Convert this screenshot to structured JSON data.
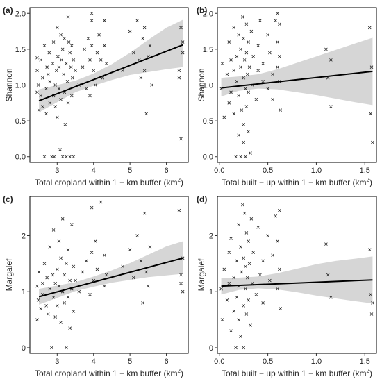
{
  "chart_data": [
    {
      "type": "scatter",
      "panel_label": "(a)",
      "xlabel": "Total cropland within 1 − km buffer (km",
      "xlabel_sup": "2",
      "xlabel_tail": ")",
      "ylabel": "Shannon",
      "xlim": [
        2.25,
        6.6
      ],
      "ylim": [
        -0.08,
        2.08
      ],
      "xticks": [
        3,
        4,
        5,
        6
      ],
      "xtick_labels": [
        "3",
        "4",
        "5",
        "6"
      ],
      "yticks": [
        0.0,
        0.5,
        1.0,
        1.5,
        2.0
      ],
      "ytick_labels": [
        "0.0",
        "0.5",
        "1.0",
        "1.5",
        "2.0"
      ],
      "fit": {
        "x": [
          2.5,
          6.45
        ],
        "y": [
          0.78,
          1.56
        ]
      },
      "band": {
        "x": [
          2.5,
          3.0,
          3.5,
          4.0,
          4.5,
          5.0,
          5.5,
          6.0,
          6.45
        ],
        "lower": [
          0.62,
          0.76,
          0.9,
          0.99,
          1.07,
          1.14,
          1.18,
          1.22,
          1.25
        ],
        "upper": [
          0.94,
          1.0,
          1.06,
          1.16,
          1.29,
          1.45,
          1.63,
          1.8,
          1.91
        ]
      },
      "points": {
        "x": [
          2.45,
          2.45,
          2.45,
          2.48,
          2.5,
          2.55,
          2.55,
          2.6,
          2.6,
          2.65,
          2.65,
          2.7,
          2.7,
          2.72,
          2.75,
          2.78,
          2.8,
          2.8,
          2.85,
          2.88,
          2.9,
          2.9,
          2.92,
          2.95,
          2.95,
          2.98,
          3.0,
          3.0,
          3.02,
          3.05,
          3.05,
          3.08,
          3.1,
          3.1,
          3.12,
          3.15,
          3.15,
          3.18,
          3.2,
          3.2,
          3.22,
          3.25,
          3.25,
          3.28,
          3.3,
          3.3,
          3.32,
          3.35,
          3.35,
          3.38,
          3.4,
          3.4,
          3.42,
          3.45,
          3.45,
          3.5,
          3.6,
          3.7,
          3.75,
          3.8,
          3.85,
          3.9,
          3.9,
          3.95,
          3.95,
          3.95,
          4.0,
          4.05,
          4.1,
          4.15,
          4.2,
          4.25,
          4.3,
          4.3,
          4.35,
          4.8,
          5.0,
          5.1,
          5.2,
          5.25,
          5.3,
          5.35,
          5.4,
          5.4,
          5.45,
          5.5,
          5.55,
          5.6,
          6.35,
          6.4,
          6.45,
          6.45,
          6.4,
          6.35
        ],
        "y": [
          1.38,
          1.2,
          0.9,
          1.0,
          0.65,
          0.85,
          1.35,
          1.1,
          0.7,
          1.55,
          0.0,
          0.95,
          0.6,
          1.25,
          1.15,
          1.45,
          0.75,
          1.05,
          0.0,
          1.3,
          0.85,
          1.6,
          0.0,
          1.0,
          0.7,
          1.2,
          1.8,
          0.55,
          1.4,
          0.95,
          1.25,
          0.1,
          1.7,
          0.8,
          1.35,
          1.5,
          0.0,
          1.15,
          0.9,
          1.65,
          0.45,
          1.3,
          0.0,
          1.05,
          1.95,
          0.75,
          1.6,
          0.0,
          1.45,
          1.25,
          0.85,
          1.55,
          1.1,
          0.0,
          1.35,
          1.2,
          1.0,
          1.25,
          1.5,
          0.95,
          1.65,
          1.35,
          0.85,
          2.0,
          1.55,
          1.9,
          1.2,
          1.0,
          1.45,
          1.7,
          1.35,
          1.1,
          1.9,
          1.55,
          1.3,
          1.2,
          1.75,
          1.45,
          1.9,
          1.35,
          1.1,
          1.65,
          1.8,
          1.2,
          0.6,
          1.4,
          1.55,
          1.0,
          1.2,
          1.8,
          1.45,
          1.6,
          0.25,
          1.1
        ]
      }
    },
    {
      "type": "scatter",
      "panel_label": "(b)",
      "xlabel": "Total built − up within 1 − km buffer (km",
      "xlabel_sup": "2",
      "xlabel_tail": ")",
      "ylabel": "Shannon",
      "xlim": [
        -0.02,
        1.62
      ],
      "ylim": [
        -0.08,
        2.08
      ],
      "xticks": [
        0.0,
        0.5,
        1.0,
        1.5
      ],
      "xtick_labels": [
        "0.0",
        "0.5",
        "1.0",
        "1.5"
      ],
      "yticks": [
        0.0,
        0.5,
        1.0,
        1.5,
        2.0
      ],
      "ytick_labels": [
        "0.0",
        "0.5",
        "1.0",
        "1.5",
        "2.0"
      ],
      "fit": {
        "x": [
          0.02,
          1.58
        ],
        "y": [
          0.96,
          1.19
        ]
      },
      "band": {
        "x": [
          0.02,
          0.2,
          0.4,
          0.6,
          0.8,
          1.0,
          1.2,
          1.4,
          1.58
        ],
        "lower": [
          0.84,
          0.92,
          0.95,
          0.94,
          0.9,
          0.86,
          0.81,
          0.76,
          0.72
        ],
        "upper": [
          1.1,
          1.12,
          1.15,
          1.22,
          1.31,
          1.4,
          1.49,
          1.58,
          1.66
        ]
      },
      "points": {
        "x": [
          0.02,
          0.03,
          0.05,
          0.08,
          0.1,
          0.1,
          0.12,
          0.12,
          0.15,
          0.15,
          0.15,
          0.17,
          0.18,
          0.18,
          0.2,
          0.2,
          0.2,
          0.22,
          0.22,
          0.22,
          0.23,
          0.24,
          0.25,
          0.25,
          0.25,
          0.25,
          0.26,
          0.27,
          0.27,
          0.28,
          0.28,
          0.28,
          0.29,
          0.3,
          0.3,
          0.3,
          0.31,
          0.32,
          0.33,
          0.34,
          0.35,
          0.38,
          0.4,
          0.4,
          0.42,
          0.45,
          0.45,
          0.5,
          0.5,
          0.52,
          0.55,
          0.55,
          0.58,
          0.6,
          0.6,
          0.6,
          0.62,
          0.62,
          0.62,
          0.63,
          1.1,
          1.12,
          1.15,
          1.15,
          1.55,
          1.56,
          1.57,
          1.58
        ],
        "y": [
          0.95,
          1.3,
          0.55,
          1.15,
          1.6,
          0.75,
          1.35,
          0.9,
          1.8,
          0.6,
          1.2,
          0.0,
          1.4,
          1.05,
          1.7,
          0.3,
          0.85,
          1.5,
          0.0,
          1.25,
          0.65,
          1.95,
          1.1,
          1.65,
          0.2,
          0.45,
          1.35,
          0.95,
          0.0,
          1.85,
          0.7,
          1.45,
          1.15,
          1.6,
          0.35,
          0.9,
          1.25,
          0.05,
          1.75,
          1.0,
          1.4,
          0.8,
          1.55,
          1.2,
          1.9,
          1.05,
          1.3,
          1.7,
          0.95,
          1.45,
          1.15,
          0.8,
          1.9,
          2.0,
          1.6,
          1.25,
          1.4,
          1.05,
          1.85,
          0.65,
          1.5,
          1.1,
          0.7,
          1.35,
          1.8,
          0.6,
          1.25,
          0.2
        ]
      }
    },
    {
      "type": "scatter",
      "panel_label": "(c)",
      "xlabel": "Total cropland within 1 − km buffer (km",
      "xlabel_sup": "2",
      "xlabel_tail": ")",
      "ylabel": "Margalef",
      "xlim": [
        2.25,
        6.6
      ],
      "ylim": [
        -0.1,
        2.7
      ],
      "xticks": [
        3,
        4,
        5,
        6
      ],
      "xtick_labels": [
        "3",
        "4",
        "5",
        "6"
      ],
      "yticks": [
        0,
        1,
        2
      ],
      "ytick_labels": [
        "0",
        "1",
        "2"
      ],
      "fit": {
        "x": [
          2.5,
          6.45
        ],
        "y": [
          0.91,
          1.6
        ]
      },
      "band": {
        "x": [
          2.5,
          3.0,
          3.5,
          4.0,
          4.5,
          5.0,
          5.5,
          6.0,
          6.45
        ],
        "lower": [
          0.77,
          0.89,
          1.01,
          1.09,
          1.16,
          1.21,
          1.26,
          1.29,
          1.32
        ],
        "upper": [
          1.05,
          1.11,
          1.17,
          1.27,
          1.38,
          1.51,
          1.66,
          1.81,
          1.9
        ]
      },
      "points": {
        "x": [
          2.45,
          2.45,
          2.48,
          2.5,
          2.55,
          2.6,
          2.6,
          2.65,
          2.7,
          2.72,
          2.75,
          2.8,
          2.8,
          2.85,
          2.88,
          2.9,
          2.9,
          2.95,
          2.95,
          3.0,
          3.0,
          3.05,
          3.05,
          3.1,
          3.1,
          3.15,
          3.15,
          3.2,
          3.2,
          3.25,
          3.25,
          3.3,
          3.3,
          3.35,
          3.35,
          3.4,
          3.4,
          3.45,
          3.45,
          3.5,
          3.6,
          3.7,
          3.8,
          3.9,
          3.95,
          3.95,
          4.0,
          4.05,
          4.1,
          4.2,
          4.3,
          4.3,
          4.35,
          4.8,
          5.0,
          5.1,
          5.2,
          5.3,
          5.35,
          5.4,
          5.45,
          5.5,
          5.55,
          6.35,
          6.4,
          6.45,
          6.45,
          6.4
        ],
        "y": [
          1.1,
          0.5,
          0.85,
          1.35,
          0.7,
          1.15,
          0.95,
          1.5,
          0.75,
          1.25,
          0.6,
          1.05,
          1.8,
          0.0,
          1.3,
          0.9,
          2.1,
          1.15,
          0.55,
          1.4,
          0.75,
          1.9,
          1.1,
          0.45,
          1.6,
          1.0,
          2.3,
          0.8,
          1.3,
          0.0,
          1.5,
          1.75,
          0.9,
          1.2,
          0.35,
          2.2,
          1.05,
          0.65,
          1.45,
          1.2,
          1.0,
          1.35,
          1.55,
          0.95,
          2.5,
          1.7,
          1.2,
          1.9,
          1.4,
          2.6,
          1.1,
          1.65,
          1.3,
          1.45,
          1.75,
          1.25,
          2.0,
          1.55,
          0.8,
          2.4,
          1.35,
          1.1,
          1.8,
          2.45,
          1.3,
          1.6,
          1.0,
          1.15
        ]
      }
    },
    {
      "type": "scatter",
      "panel_label": "(d)",
      "xlabel": "Total built − up within 1 − km buffer (km",
      "xlabel_sup": "2",
      "xlabel_tail": ")",
      "ylabel": "Margalef",
      "xlim": [
        -0.02,
        1.62
      ],
      "ylim": [
        -0.1,
        2.7
      ],
      "xticks": [
        0.0,
        0.5,
        1.0,
        1.5
      ],
      "xtick_labels": [
        "0.0",
        "0.5",
        "1.0",
        "1.5"
      ],
      "yticks": [
        0,
        1,
        2
      ],
      "ytick_labels": [
        "0",
        "1",
        "2"
      ],
      "fit": {
        "x": [
          0.02,
          1.58
        ],
        "y": [
          1.1,
          1.21
        ]
      },
      "band": {
        "x": [
          0.02,
          0.2,
          0.4,
          0.6,
          0.8,
          1.0,
          1.2,
          1.4,
          1.58
        ],
        "lower": [
          0.95,
          1.03,
          1.06,
          1.04,
          0.99,
          0.93,
          0.88,
          0.83,
          0.79
        ],
        "upper": [
          1.25,
          1.25,
          1.27,
          1.33,
          1.41,
          1.49,
          1.55,
          1.59,
          1.63
        ]
      },
      "points": {
        "x": [
          0.02,
          0.03,
          0.05,
          0.08,
          0.1,
          0.1,
          0.12,
          0.12,
          0.15,
          0.15,
          0.17,
          0.18,
          0.18,
          0.2,
          0.2,
          0.2,
          0.22,
          0.22,
          0.23,
          0.24,
          0.25,
          0.25,
          0.25,
          0.26,
          0.27,
          0.27,
          0.28,
          0.28,
          0.29,
          0.3,
          0.3,
          0.31,
          0.32,
          0.33,
          0.34,
          0.35,
          0.38,
          0.4,
          0.42,
          0.45,
          0.45,
          0.5,
          0.52,
          0.55,
          0.58,
          0.6,
          0.6,
          0.62,
          0.62,
          0.63,
          1.1,
          1.12,
          1.15,
          1.55,
          1.56,
          1.57,
          1.58
        ],
        "y": [
          1.05,
          0.5,
          1.4,
          0.85,
          1.7,
          1.15,
          0.3,
          1.95,
          0.65,
          1.25,
          0.0,
          1.55,
          0.9,
          2.2,
          1.1,
          0.5,
          1.8,
          0.2,
          1.35,
          2.55,
          0.75,
          1.6,
          0.0,
          2.4,
          1.05,
          1.45,
          0.6,
          2.05,
          1.25,
          1.9,
          0.85,
          1.5,
          0.4,
          2.3,
          1.15,
          1.7,
          0.95,
          2.15,
          1.3,
          1.55,
          0.8,
          2.0,
          1.2,
          1.65,
          2.35,
          1.05,
          1.9,
          1.4,
          2.45,
          0.7,
          1.85,
          1.3,
          0.9,
          1.75,
          0.95,
          0.6,
          0.8
        ]
      }
    }
  ]
}
